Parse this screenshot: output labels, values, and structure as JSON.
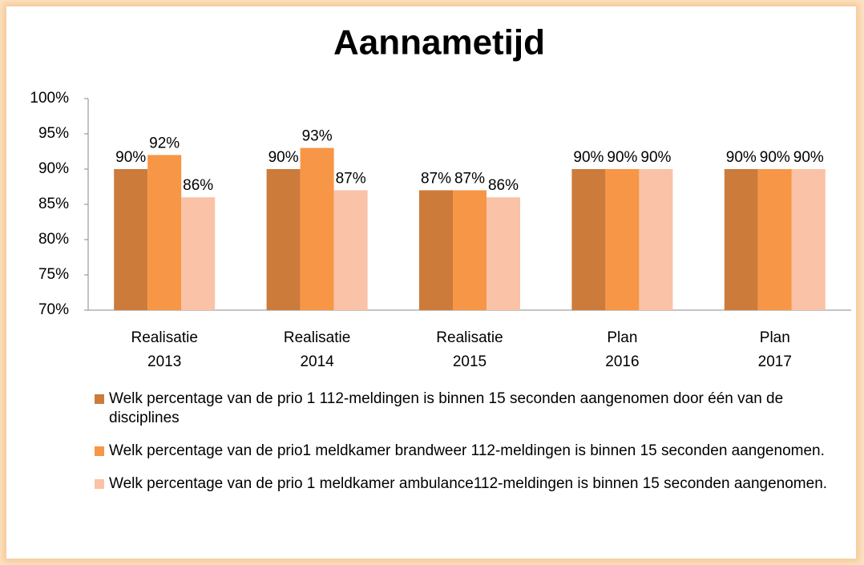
{
  "chart_data": {
    "type": "bar",
    "title": "Aannametijd",
    "categories": [
      [
        "Realisatie",
        "2013"
      ],
      [
        "Realisatie",
        "2014"
      ],
      [
        "Realisatie",
        "2015"
      ],
      [
        "Plan",
        "2016"
      ],
      [
        "Plan",
        "2017"
      ]
    ],
    "series": [
      {
        "name": "Welk percentage van de prio 1  112-meldingen is binnen 15 seconden aangenomen door één van de disciplines",
        "color": "#cc7b3b",
        "values": [
          90,
          90,
          87,
          90,
          90
        ],
        "value_labels": [
          "90%",
          "90%",
          "87%",
          "90%",
          "90%"
        ]
      },
      {
        "name": "Welk percentage van de prio1 meldkamer brandweer 112-meldingen is binnen 15 seconden aangenomen.",
        "color": "#f79646",
        "values": [
          92,
          93,
          87,
          90,
          90
        ],
        "value_labels": [
          "92%",
          "93%",
          "87%",
          "90%",
          "90%"
        ]
      },
      {
        "name": "Welk percentage van de prio 1 meldkamer ambulance112-meldingen is binnen 15 seconden aangenomen.",
        "color": "#fac2a6",
        "values": [
          86,
          87,
          86,
          90,
          90
        ],
        "value_labels": [
          "86%",
          "87%",
          "86%",
          "90%",
          "90%"
        ]
      }
    ],
    "ylim": [
      70,
      100
    ],
    "yticks": [
      {
        "value": 70,
        "label": "70%"
      },
      {
        "value": 75,
        "label": "75%"
      },
      {
        "value": 80,
        "label": "80%"
      },
      {
        "value": 85,
        "label": "85%"
      },
      {
        "value": 90,
        "label": "90%"
      },
      {
        "value": 95,
        "label": "95%"
      },
      {
        "value": 100,
        "label": "100%"
      }
    ],
    "grid": false,
    "legend": "bottom"
  }
}
